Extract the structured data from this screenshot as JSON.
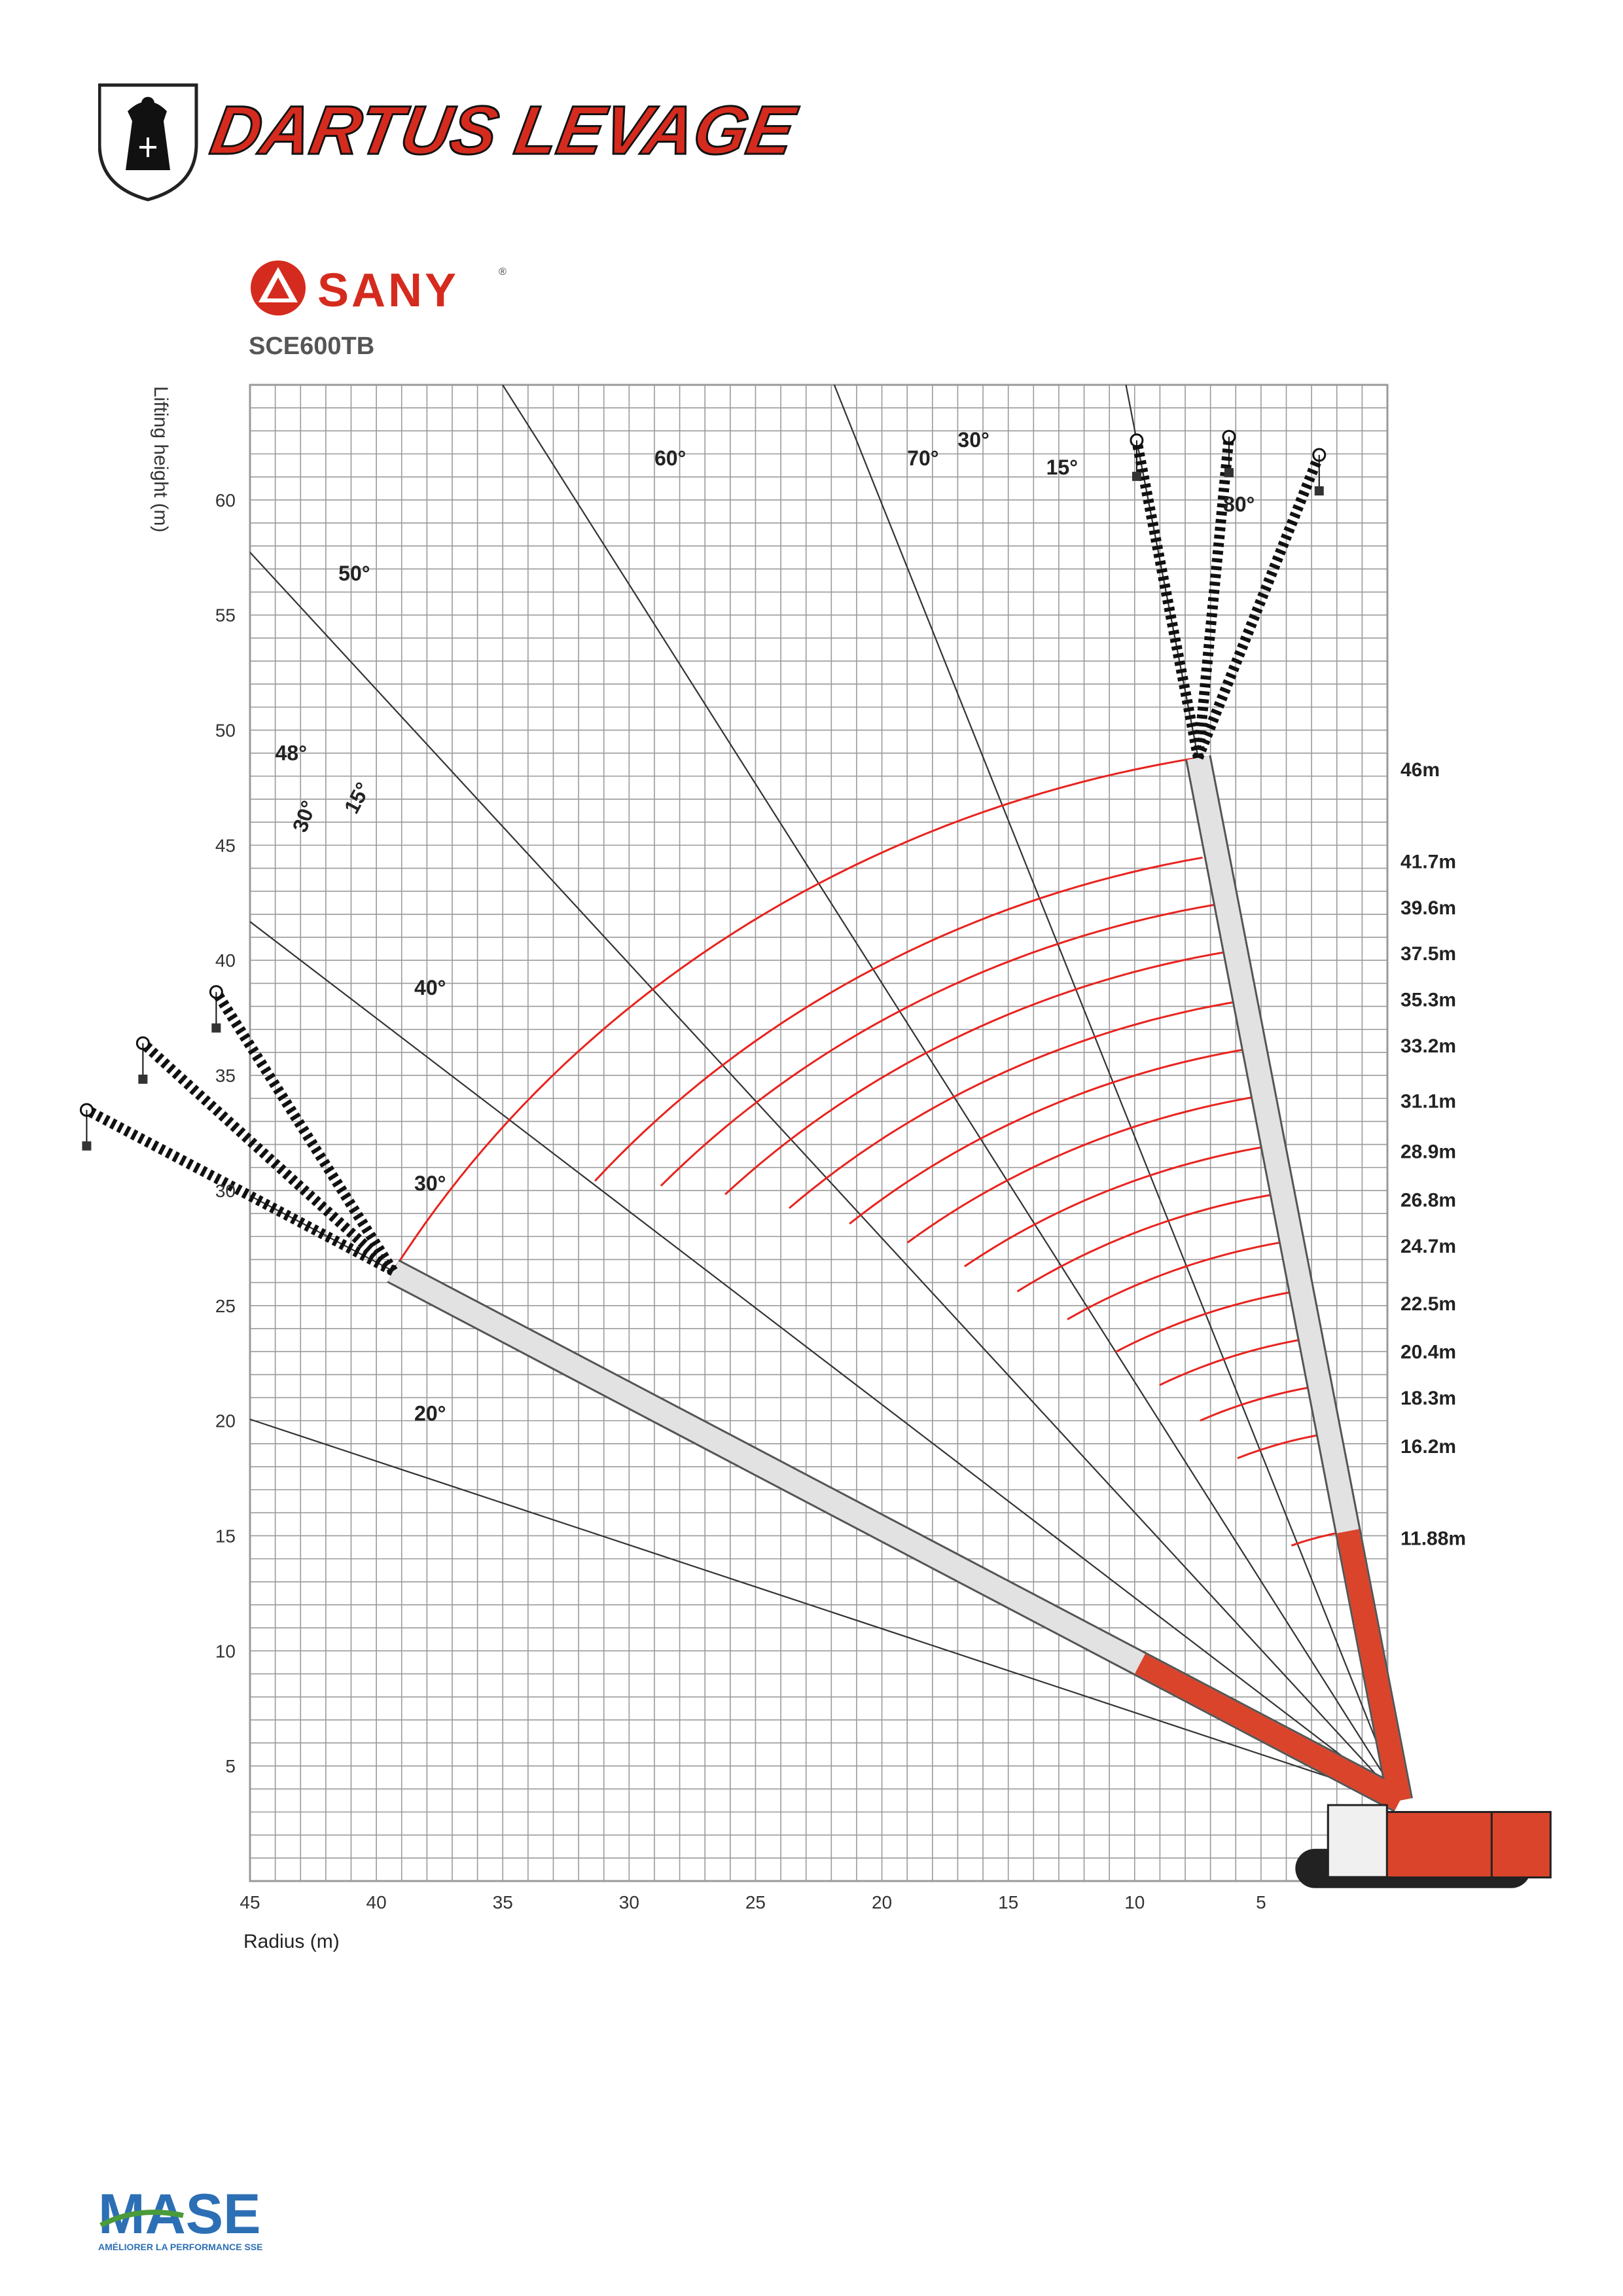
{
  "header": {
    "company_name": "DARTUS LEVAGE",
    "brand": "SANY",
    "brand_mark": "®",
    "model": "SCE600TB"
  },
  "footer": {
    "certification": "MASE",
    "tagline": "AMÉLIORER LA PERFORMANCE SSE"
  },
  "colors": {
    "grid": "#9a9a9a",
    "grid_bg": "#ffffff",
    "load_arc": "#e8231e",
    "boom_fill": "#e2e2e2",
    "boom_edge": "#555555",
    "crane_body": "#d9442b",
    "brand_red": "#d52b1e",
    "brand_blue": "#2c6fb5",
    "mase_green": "#4a9b3c"
  },
  "chart_data": {
    "type": "range-diagram",
    "xlabel": "Radius (m)",
    "ylabel": "Lifting height (m)",
    "xlim": [
      45,
      0
    ],
    "ylim": [
      0,
      65
    ],
    "x_ticks": [
      45,
      40,
      35,
      30,
      25,
      20,
      15,
      10,
      5
    ],
    "y_ticks": [
      5,
      10,
      15,
      20,
      25,
      30,
      35,
      40,
      45,
      50,
      55,
      60
    ],
    "grid": true,
    "boom_pivot": [
      -0.5,
      3.5
    ],
    "angle_lines": [
      {
        "label": "20°",
        "angle": 20,
        "label_at": [
          38.5,
          20
        ]
      },
      {
        "label": "30°",
        "angle": 30,
        "label_at": [
          38.5,
          30
        ]
      },
      {
        "label": "40°",
        "angle": 40,
        "label_at": [
          38.5,
          38.5
        ]
      },
      {
        "label": "50°",
        "angle": 50,
        "label_at": [
          41.5,
          56.5
        ]
      },
      {
        "label": "60°",
        "angle": 60,
        "label_at": [
          29,
          61.5
        ]
      },
      {
        "label": "70°",
        "angle": 70,
        "label_at": [
          19,
          61.5
        ]
      },
      {
        "label": "80°",
        "angle": 80,
        "label_at": [
          6.5,
          59.5
        ]
      }
    ],
    "boom_lengths": [
      {
        "label": "46m",
        "value": 46,
        "y": 48
      },
      {
        "label": "41.7m",
        "value": 41.7,
        "y": 44
      },
      {
        "label": "39.6m",
        "value": 39.6,
        "y": 42
      },
      {
        "label": "37.5m",
        "value": 37.5,
        "y": 40
      },
      {
        "label": "35.3m",
        "value": 35.3,
        "y": 38
      },
      {
        "label": "33.2m",
        "value": 33.2,
        "y": 36
      },
      {
        "label": "31.1m",
        "value": 31.1,
        "y": 33.6
      },
      {
        "label": "28.9m",
        "value": 28.9,
        "y": 31.4
      },
      {
        "label": "26.8m",
        "value": 26.8,
        "y": 29.3
      },
      {
        "label": "24.7m",
        "value": 24.7,
        "y": 27.3
      },
      {
        "label": "22.5m",
        "value": 22.5,
        "y": 24.8
      },
      {
        "label": "20.4m",
        "value": 20.4,
        "y": 22.7
      },
      {
        "label": "18.3m",
        "value": 18.3,
        "y": 20.7
      },
      {
        "label": "16.2m",
        "value": 16.2,
        "y": 18.6
      },
      {
        "label": "11.88m",
        "value": 11.88,
        "y": 14.6
      }
    ],
    "arc_angle_range": [
      30,
      80
    ],
    "jib_groups": [
      {
        "boom_angle": 80,
        "jib_offsets": [
          0,
          15,
          30
        ],
        "labels": [
          "15°",
          "30°"
        ]
      },
      {
        "boom_angle": 30,
        "jib_offsets": [
          0,
          15,
          30
        ],
        "labels": [
          "15°",
          "30°"
        ],
        "max_label": "48°"
      }
    ],
    "jib_length": 14
  }
}
